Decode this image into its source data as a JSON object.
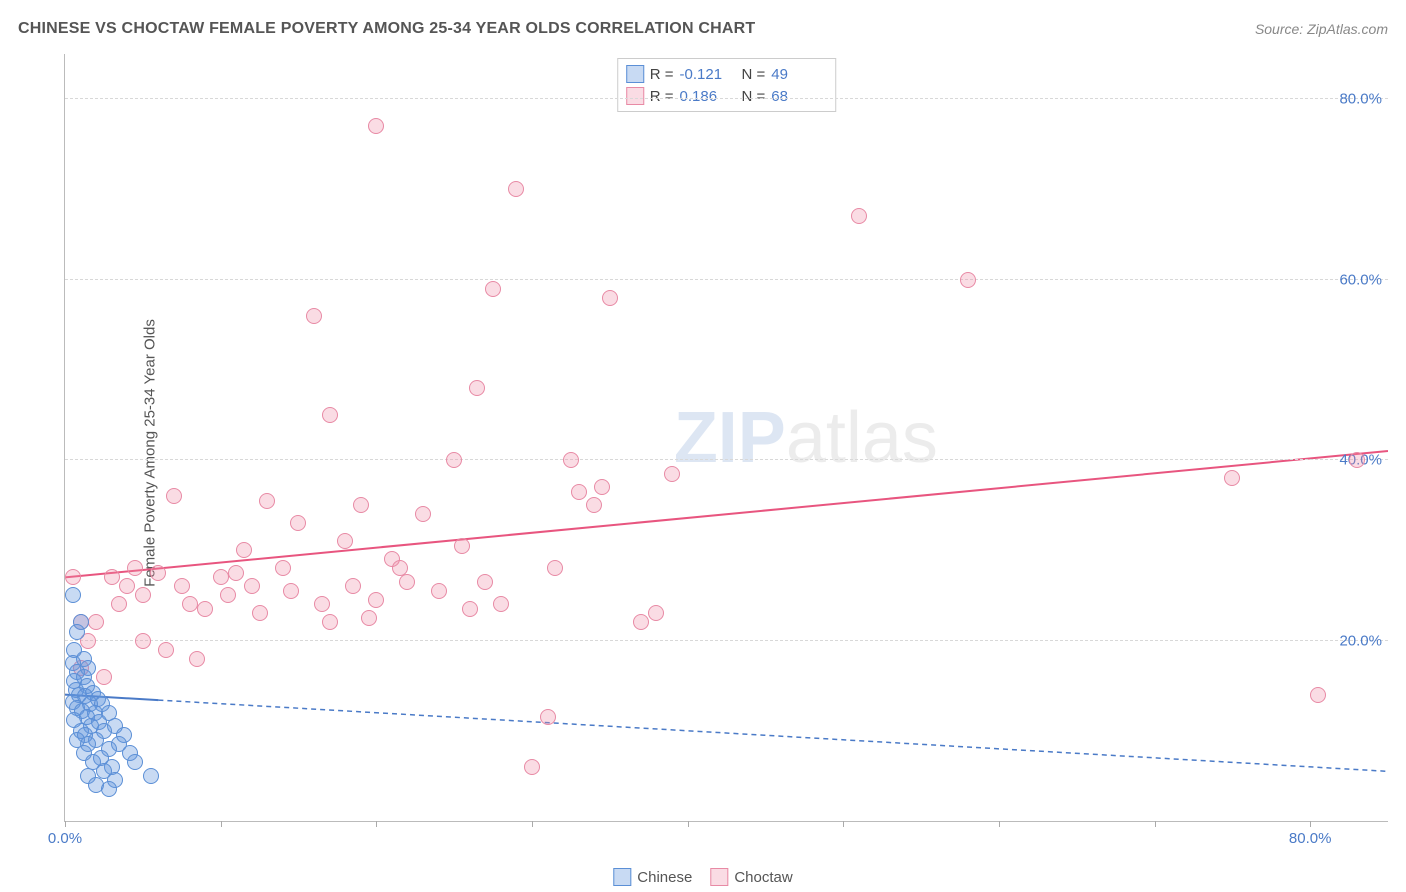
{
  "header": {
    "title": "CHINESE VS CHOCTAW FEMALE POVERTY AMONG 25-34 YEAR OLDS CORRELATION CHART",
    "source": "Source: ZipAtlas.com"
  },
  "chart": {
    "type": "scatter",
    "ylabel": "Female Poverty Among 25-34 Year Olds",
    "xlim": [
      0,
      85
    ],
    "ylim": [
      0,
      85
    ],
    "ytick_labels": [
      "20.0%",
      "40.0%",
      "60.0%",
      "80.0%"
    ],
    "ytick_vals": [
      20,
      40,
      60,
      80
    ],
    "xtick_vals": [
      0,
      10,
      20,
      30,
      40,
      50,
      60,
      70,
      80
    ],
    "xtick_labels": {
      "0": "0.0%",
      "80": "80.0%"
    },
    "grid_color": "#d8d8d8",
    "background_color": "#ffffff",
    "axis_color": "#bbbbbb",
    "label_color": "#4a7ac7",
    "marker_radius": 8,
    "marker_border_width": 1.5,
    "series": {
      "chinese": {
        "label": "Chinese",
        "fill": "rgba(96,150,220,0.35)",
        "stroke": "#5b8fd6",
        "R": "-0.121",
        "N": "49",
        "trend": {
          "y_at_x0": 14,
          "y_at_xmax": 5.5,
          "color": "#4a7ac7",
          "width": 2,
          "dash_extension": true
        },
        "points": [
          [
            0.5,
            25
          ],
          [
            1,
            22
          ],
          [
            0.8,
            21
          ],
          [
            0.6,
            19
          ],
          [
            1.2,
            18
          ],
          [
            0.5,
            17.5
          ],
          [
            1.5,
            17
          ],
          [
            0.8,
            16.5
          ],
          [
            1.2,
            16
          ],
          [
            0.6,
            15.5
          ],
          [
            1.4,
            15
          ],
          [
            0.7,
            14.5
          ],
          [
            1.8,
            14.2
          ],
          [
            0.9,
            14
          ],
          [
            1.3,
            13.8
          ],
          [
            2.1,
            13.5
          ],
          [
            0.5,
            13.2
          ],
          [
            1.6,
            13
          ],
          [
            2.4,
            13
          ],
          [
            0.8,
            12.5
          ],
          [
            1.1,
            12.2
          ],
          [
            1.9,
            12
          ],
          [
            2.8,
            12
          ],
          [
            1.4,
            11.5
          ],
          [
            0.6,
            11.2
          ],
          [
            2.2,
            11
          ],
          [
            1.7,
            10.5
          ],
          [
            3.2,
            10.5
          ],
          [
            1,
            10
          ],
          [
            2.5,
            10
          ],
          [
            1.3,
            9.5
          ],
          [
            3.8,
            9.5
          ],
          [
            0.8,
            9
          ],
          [
            2,
            9
          ],
          [
            1.5,
            8.5
          ],
          [
            3.5,
            8.5
          ],
          [
            2.8,
            8
          ],
          [
            1.2,
            7.5
          ],
          [
            4.2,
            7.5
          ],
          [
            2.3,
            7
          ],
          [
            1.8,
            6.5
          ],
          [
            3,
            6
          ],
          [
            2.5,
            5.5
          ],
          [
            1.5,
            5
          ],
          [
            4.5,
            6.5
          ],
          [
            2,
            4
          ],
          [
            3.2,
            4.5
          ],
          [
            2.8,
            3.5
          ],
          [
            5.5,
            5
          ]
        ]
      },
      "choctaw": {
        "label": "Choctaw",
        "fill": "rgba(240,140,165,0.3)",
        "stroke": "#e88aa5",
        "R": "0.186",
        "N": "68",
        "trend": {
          "y_at_x0": 27,
          "y_at_xmax": 41,
          "color": "#e8557f",
          "width": 2
        },
        "points": [
          [
            0.5,
            27
          ],
          [
            1,
            22
          ],
          [
            1.5,
            20
          ],
          [
            1,
            17
          ],
          [
            2,
            22
          ],
          [
            2.5,
            16
          ],
          [
            3,
            27
          ],
          [
            3.5,
            24
          ],
          [
            4,
            26
          ],
          [
            4.5,
            28
          ],
          [
            5,
            25
          ],
          [
            5,
            20
          ],
          [
            6,
            27.5
          ],
          [
            6.5,
            19
          ],
          [
            7,
            36
          ],
          [
            7.5,
            26
          ],
          [
            8,
            24
          ],
          [
            8.5,
            18
          ],
          [
            9,
            23.5
          ],
          [
            10,
            27
          ],
          [
            10.5,
            25
          ],
          [
            11,
            27.5
          ],
          [
            11.5,
            30
          ],
          [
            12,
            26
          ],
          [
            12.5,
            23
          ],
          [
            13,
            35.5
          ],
          [
            14,
            28
          ],
          [
            14.5,
            25.5
          ],
          [
            15,
            33
          ],
          [
            16,
            56
          ],
          [
            16.5,
            24
          ],
          [
            17,
            45
          ],
          [
            17,
            22
          ],
          [
            18,
            31
          ],
          [
            18.5,
            26
          ],
          [
            19,
            35
          ],
          [
            19.5,
            22.5
          ],
          [
            20,
            24.5
          ],
          [
            20,
            77
          ],
          [
            21,
            29
          ],
          [
            21.5,
            28
          ],
          [
            22,
            26.5
          ],
          [
            23,
            34
          ],
          [
            24,
            25.5
          ],
          [
            25,
            40
          ],
          [
            25.5,
            30.5
          ],
          [
            26,
            23.5
          ],
          [
            26.5,
            48
          ],
          [
            27,
            26.5
          ],
          [
            27.5,
            59
          ],
          [
            28,
            24
          ],
          [
            29,
            70
          ],
          [
            30,
            6
          ],
          [
            31,
            11.5
          ],
          [
            31.5,
            28
          ],
          [
            32.5,
            40
          ],
          [
            33,
            36.5
          ],
          [
            34,
            35
          ],
          [
            34.5,
            37
          ],
          [
            35,
            58
          ],
          [
            37,
            22
          ],
          [
            38,
            23
          ],
          [
            39,
            38.5
          ],
          [
            51,
            67
          ],
          [
            58,
            60
          ],
          [
            75,
            38
          ],
          [
            80.5,
            14
          ],
          [
            83,
            40
          ]
        ]
      }
    },
    "stats_box": {
      "R_prefix": "R = ",
      "N_prefix": "N = "
    },
    "watermark": {
      "prefix": "ZIP",
      "suffix": "atlas"
    }
  }
}
